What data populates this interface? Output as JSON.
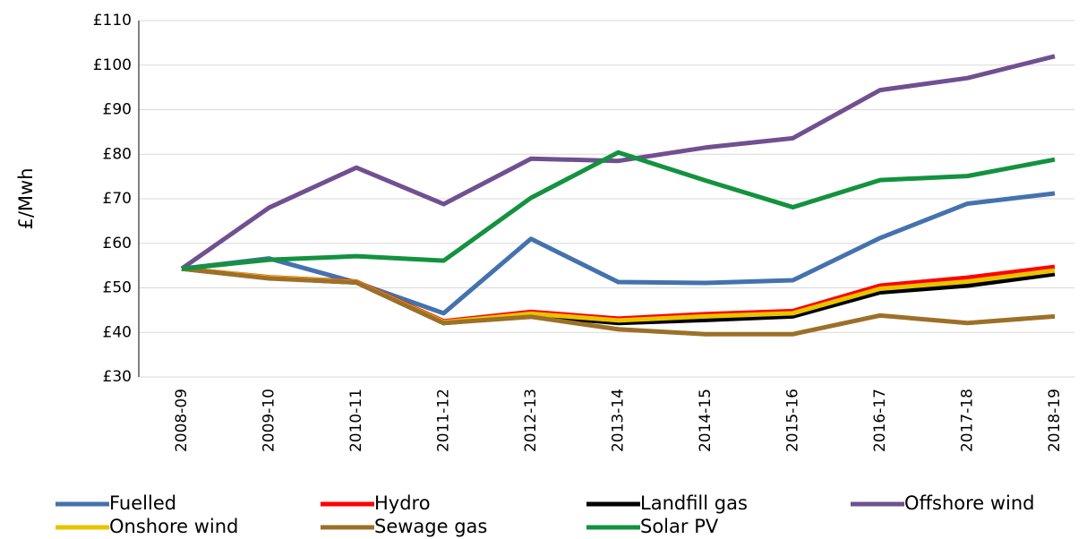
{
  "chart_data": {
    "type": "line",
    "y_label": "£/Mwh",
    "categories": [
      "2008-09",
      "2009-10",
      "2010-11",
      "2011-12",
      "2012-13",
      "2013-14",
      "2014-15",
      "2015-16",
      "2016-17",
      "2017-18",
      "2018-19"
    ],
    "series": [
      {
        "name": "Fuelled",
        "color": "#4472ad",
        "values": [
          54.3,
          56.6,
          51.2,
          44.3,
          61,
          51.3,
          51.1,
          51.7,
          61.2,
          68.9,
          71.2
        ]
      },
      {
        "name": "Hydro",
        "color": "#ff0000",
        "values": [
          54.3,
          52.4,
          51.4,
          42.5,
          44.6,
          43.1,
          44.1,
          44.8,
          50.5,
          52.3,
          54.7
        ]
      },
      {
        "name": "Landfill gas",
        "color": "#000000",
        "values": [
          54.3,
          52.2,
          51.2,
          42.1,
          43.8,
          42.1,
          42.8,
          43.6,
          49,
          50.5,
          53.1
        ]
      },
      {
        "name": "Offshore wind",
        "color": "#705090",
        "values": [
          54.3,
          68,
          77,
          68.8,
          79,
          78.5,
          81.5,
          83.6,
          94.4,
          97.1,
          102
        ]
      },
      {
        "name": "Onshore wind",
        "color": "#e8c400",
        "values": [
          54.3,
          52.3,
          51.3,
          42.3,
          44.2,
          42.7,
          43.6,
          44.3,
          49.8,
          51.4,
          53.9
        ]
      },
      {
        "name": "Sewage gas",
        "color": "#9c7028",
        "values": [
          54.3,
          52.1,
          51.2,
          42.1,
          43.5,
          40.7,
          39.6,
          39.6,
          43.8,
          42.1,
          43.6
        ]
      },
      {
        "name": "Solar PV",
        "color": "#13923f",
        "values": [
          54.3,
          56.3,
          57.1,
          56.1,
          70.2,
          80.4,
          74.1,
          68.1,
          74.2,
          75.1,
          78.8
        ]
      }
    ],
    "ylim": [
      30,
      110
    ],
    "yticks": [
      {
        "value": 30,
        "label": "£30"
      },
      {
        "value": 40,
        "label": "£40"
      },
      {
        "value": 50,
        "label": "£50"
      },
      {
        "value": 60,
        "label": "£60"
      },
      {
        "value": 70,
        "label": "£70"
      },
      {
        "value": 80,
        "label": "£80"
      },
      {
        "value": 90,
        "label": "£90"
      },
      {
        "value": 100,
        "label": "£100"
      },
      {
        "value": 110,
        "label": "£110"
      }
    ],
    "grid": true,
    "legend": "bottom"
  }
}
